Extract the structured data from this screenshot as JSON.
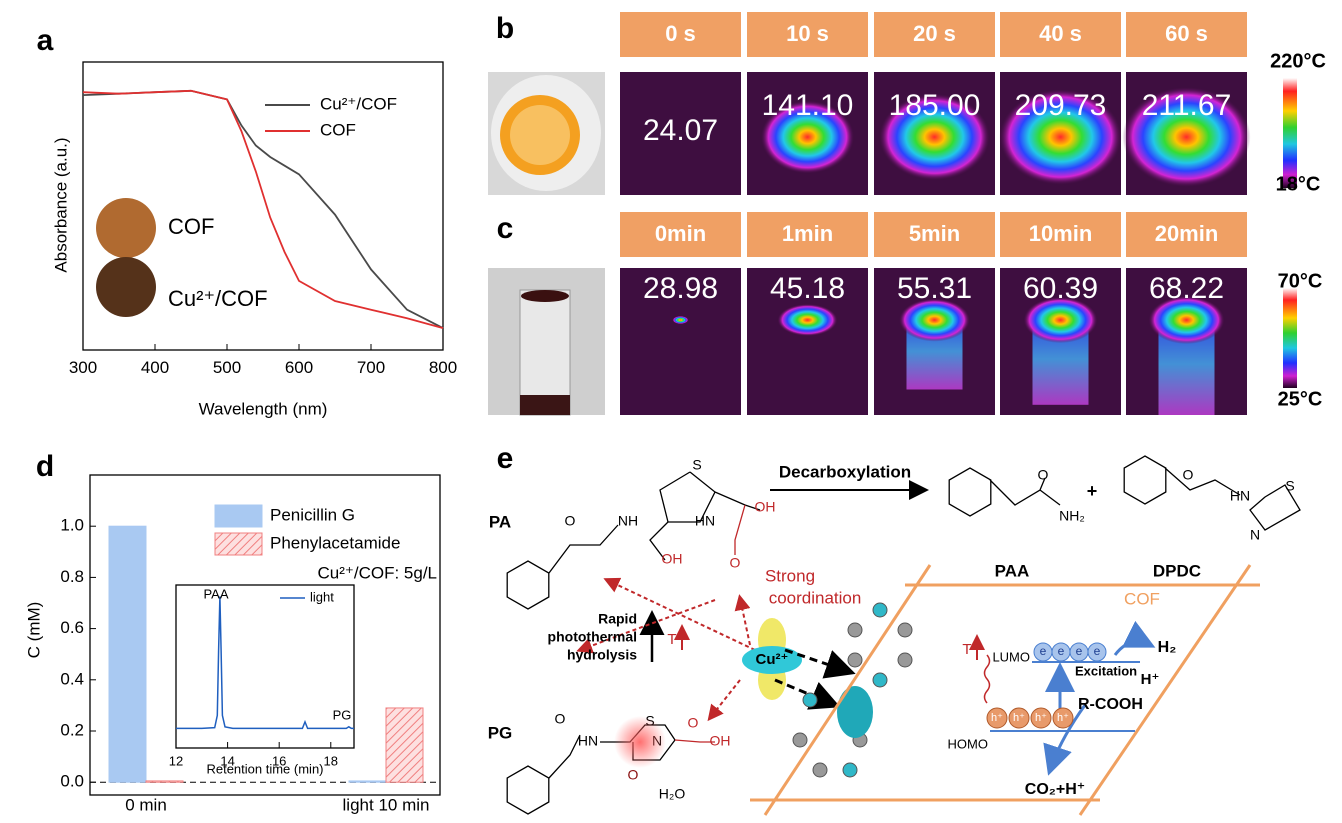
{
  "figure": {
    "panel_labels": [
      "a",
      "b",
      "c",
      "d",
      "e"
    ]
  },
  "chart_data": [
    {
      "type": "line",
      "xlabel": "Wavelength (nm)",
      "ylabel": "Absorbance (a.u.)",
      "x": [
        300,
        350,
        400,
        450,
        500,
        520,
        540,
        560,
        580,
        600,
        650,
        700,
        750,
        800
      ],
      "series": [
        {
          "name": "Cu²⁺/COF",
          "color": "#4a4a4a",
          "values": [
            0.885,
            0.89,
            0.895,
            0.9,
            0.87,
            0.78,
            0.71,
            0.67,
            0.64,
            0.61,
            0.47,
            0.28,
            0.14,
            0.076
          ]
        },
        {
          "name": "COF",
          "color": "#e03030",
          "values": [
            0.895,
            0.89,
            0.895,
            0.9,
            0.87,
            0.76,
            0.62,
            0.46,
            0.34,
            0.24,
            0.17,
            0.14,
            0.11,
            0.076
          ]
        }
      ],
      "xlim": [
        300,
        800
      ],
      "xticks": [
        300,
        400,
        500,
        600,
        700,
        800
      ],
      "ylim": [
        0,
        1
      ],
      "yticks": [],
      "insets": [
        "COF",
        "Cu²⁺/COF"
      ]
    },
    {
      "type": "bar",
      "ylabel": "C (mM)",
      "categories": [
        "0 min",
        "light 10 min"
      ],
      "series": [
        {
          "name": "Penicillin G",
          "color": "#a9c9f2",
          "values": [
            1.0,
            0.005
          ]
        },
        {
          "name": "Phenylacetamide",
          "color": "#f08080",
          "values": [
            0.005,
            0.29
          ]
        }
      ],
      "ylim": [
        -0.05,
        1.2
      ],
      "yticks": [
        {
          "value": 0,
          "label": "0.0"
        },
        {
          "value": 0.2,
          "label": "0.2"
        },
        {
          "value": 0.4,
          "label": "0.4"
        },
        {
          "value": 0.6,
          "label": "0.6"
        },
        {
          "value": 0.8,
          "label": "0.8"
        },
        {
          "value": 1,
          "label": "1.0"
        }
      ],
      "annotation": "Cu²⁺/COF: 5g/L"
    },
    {
      "type": "line",
      "xlabel": "Retention time (min)",
      "x": [
        12,
        13,
        13.5,
        13.6,
        13.65,
        13.7,
        13.75,
        13.8,
        13.9,
        14.2,
        15,
        16,
        16.9,
        17,
        17.1,
        18,
        18.6,
        18.7,
        18.8,
        18.9
      ],
      "series": [
        {
          "name": "light",
          "color": "#1f5fbf",
          "values": [
            0.12,
            0.12,
            0.125,
            0.2,
            0.6,
            0.93,
            0.6,
            0.2,
            0.13,
            0.12,
            0.12,
            0.12,
            0.12,
            0.16,
            0.12,
            0.12,
            0.12,
            0.13,
            0.12,
            0.12
          ]
        }
      ],
      "xlim": [
        12,
        18.9
      ],
      "xticks": [
        12,
        14,
        16,
        18
      ],
      "ylim": [
        0,
        1
      ],
      "yticks": [],
      "peak_labels": [
        "PAA",
        "PG"
      ]
    }
  ],
  "thermal_b": {
    "times": [
      "0 s",
      "10 s",
      "20 s",
      "40 s",
      "60 s"
    ],
    "readings": [
      "24.07",
      "141.10",
      "185.00",
      "209.73",
      "211.67"
    ],
    "scale": [
      "220°C",
      "18°C"
    ]
  },
  "thermal_c": {
    "times": [
      "0min",
      "1min",
      "5min",
      "10min",
      "20min"
    ],
    "readings": [
      "28.98",
      "45.18",
      "55.31",
      "60.39",
      "68.22"
    ],
    "scale": [
      "70°C",
      "25°C"
    ]
  },
  "scheme": {
    "decarboxylation": "Decarboxylation",
    "pa": "PA",
    "paa": "PAA",
    "plus": "+",
    "dpdc": "DPDC",
    "pg": "PG",
    "strong": [
      "Strong",
      "coordination"
    ],
    "hydrolysis": [
      "Rapid",
      "photothermal",
      "hydrolysis"
    ],
    "t_marks": [
      "T",
      "T"
    ],
    "cu": "Cu²⁺",
    "cof": "COF",
    "lumo": "LUMO",
    "homo": "HOMO",
    "h2": "H₂",
    "hplus": "H⁺",
    "excitation": "Excitation",
    "rcooh": "R-COOH",
    "co2": "CO₂+H⁺",
    "electrons": [
      "e",
      "e",
      "e",
      "e"
    ],
    "holes": [
      "h⁺",
      "h⁺",
      "h⁺",
      "h⁺"
    ],
    "water": "H₂O",
    "atoms": [
      "S",
      "NH",
      "HN",
      "O",
      "OH",
      "O",
      "OH",
      "O",
      "NH₂",
      "O",
      "HN",
      "S",
      "N",
      "S",
      "HN",
      "N",
      "O",
      "O",
      "OH",
      "O"
    ]
  }
}
